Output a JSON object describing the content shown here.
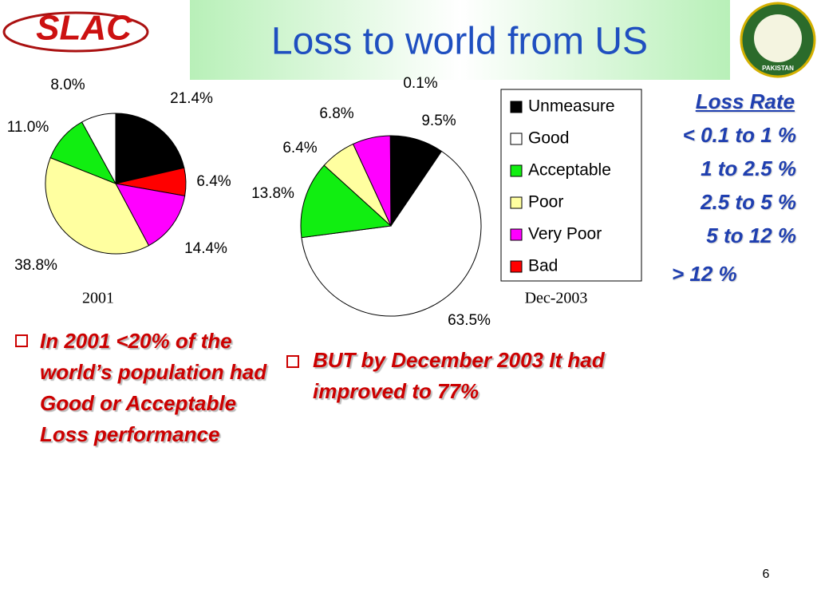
{
  "title": "Loss to world from US",
  "logos": {
    "left": "SLAC",
    "right": "PAKISTAN"
  },
  "chart_data": [
    {
      "type": "pie",
      "title": "2001",
      "values": [
        21.4,
        6.4,
        14.4,
        38.8,
        11.0,
        8.0
      ],
      "value_labels": [
        "21.4%",
        "6.4%",
        "14.4%",
        "38.8%",
        "11.0%",
        "8.0%"
      ],
      "colors": [
        "#000000",
        "#ff0000",
        "#ff00ff",
        "#ffffa0",
        "#11ee11",
        "#ffffff"
      ]
    },
    {
      "type": "pie",
      "title": "Dec-2003",
      "categories": [
        "Unmeasure",
        "Good",
        "Acceptable",
        "Poor",
        "Very Poor",
        "Bad"
      ],
      "values": [
        9.5,
        63.5,
        13.8,
        6.4,
        6.8,
        0.1
      ],
      "value_labels": [
        "9.5%",
        "63.5%",
        "13.8%",
        "6.4%",
        "6.8%",
        "0.1%"
      ],
      "colors": [
        "#000000",
        "#ffffff",
        "#11ee11",
        "#ffffa0",
        "#ff00ff",
        "#ff0000"
      ]
    }
  ],
  "loss_rate": {
    "title": "Loss Rate",
    "items": [
      "< 0.1 to 1 %",
      "1 to 2.5 %",
      "2.5 to 5 %",
      "5 to 12 %",
      "> 12 %"
    ]
  },
  "bullets": [
    "In 2001 <20% of the world’s population had Good or Acceptable Loss performance",
    "BUT by December 2003 It had improved to 77%"
  ],
  "page_number": "6"
}
